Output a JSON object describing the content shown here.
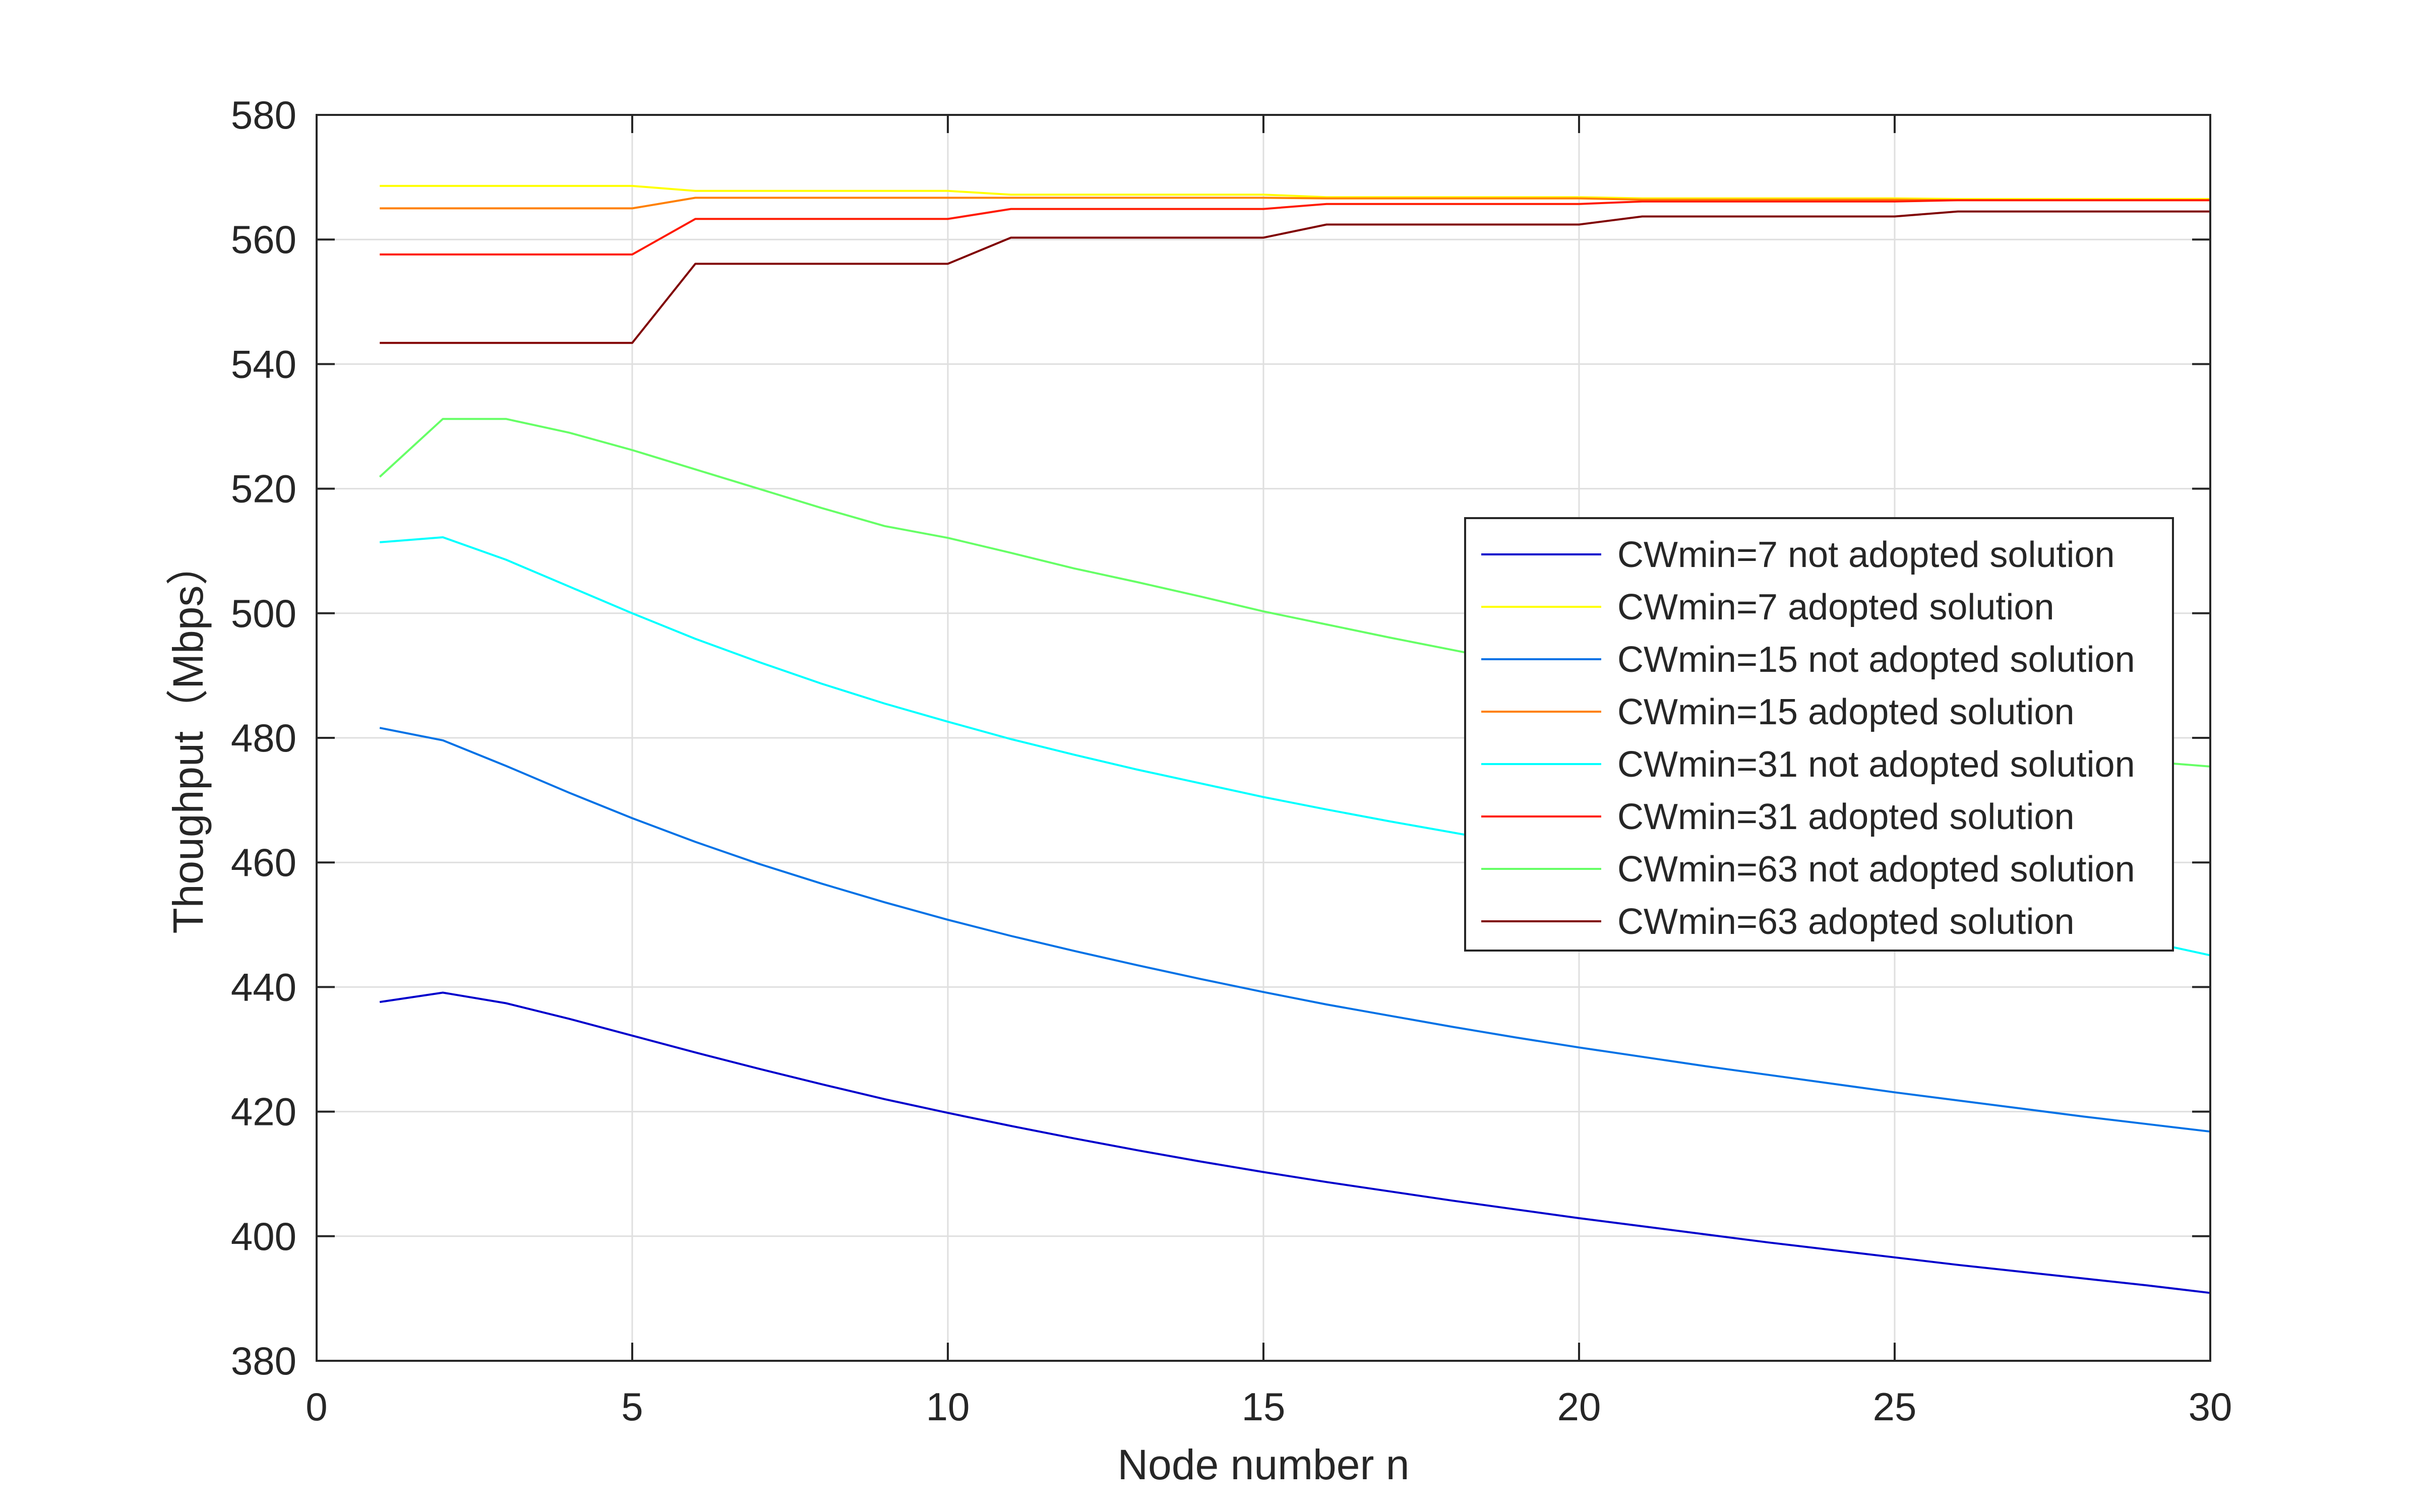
{
  "chart_data": {
    "type": "line",
    "title": "",
    "xlabel": "Node number n",
    "ylabel": "Thoughput（Mbps）",
    "xlim": [
      0,
      30
    ],
    "ylim": [
      380,
      580
    ],
    "xticks": [
      0,
      5,
      10,
      15,
      20,
      25,
      30
    ],
    "yticks": [
      380,
      400,
      420,
      440,
      460,
      480,
      500,
      520,
      540,
      560,
      580
    ],
    "grid": true,
    "legend_position": "right",
    "x": [
      1,
      2,
      3,
      4,
      5,
      6,
      7,
      8,
      9,
      10,
      11,
      12,
      13,
      14,
      15,
      16,
      17,
      18,
      19,
      20,
      21,
      22,
      23,
      24,
      25,
      26,
      27,
      28,
      29,
      30
    ],
    "series": [
      {
        "name": "CWmin=7 not adopted solution",
        "color": "#0000CC",
        "values": [
          437.6,
          439.1,
          437.4,
          434.9,
          432.2,
          429.5,
          426.9,
          424.4,
          422.0,
          419.8,
          417.7,
          415.7,
          413.8,
          412.0,
          410.3,
          408.7,
          407.2,
          405.7,
          404.3,
          402.9,
          401.6,
          400.3,
          399.0,
          397.8,
          396.6,
          395.4,
          394.3,
          393.2,
          392.1,
          390.9
        ]
      },
      {
        "name": "CWmin=7 adopted solution",
        "color": "#FFFF00",
        "values": [
          568.6,
          568.6,
          568.6,
          568.6,
          568.6,
          567.8,
          567.8,
          567.8,
          567.8,
          567.8,
          567.2,
          567.2,
          567.2,
          567.2,
          567.2,
          566.8,
          566.8,
          566.8,
          566.8,
          566.8,
          566.6,
          566.6,
          566.6,
          566.6,
          566.6,
          566.5,
          566.5,
          566.5,
          566.5,
          566.5
        ]
      },
      {
        "name": "CWmin=15 not adopted solution",
        "color": "#0072E6",
        "values": [
          481.6,
          479.6,
          475.5,
          471.2,
          467.1,
          463.3,
          459.8,
          456.6,
          453.6,
          450.8,
          448.2,
          445.8,
          443.5,
          441.3,
          439.2,
          437.2,
          435.4,
          433.6,
          431.9,
          430.3,
          428.8,
          427.3,
          425.9,
          424.5,
          423.1,
          421.8,
          420.5,
          419.2,
          418.0,
          416.8
        ]
      },
      {
        "name": "CWmin=15 adopted solution",
        "color": "#FF8000",
        "values": [
          565.0,
          565.0,
          565.0,
          565.0,
          565.0,
          566.7,
          566.7,
          566.7,
          566.7,
          566.7,
          566.7,
          566.7,
          566.7,
          566.7,
          566.7,
          566.6,
          566.6,
          566.6,
          566.6,
          566.6,
          566.4,
          566.4,
          566.4,
          566.4,
          566.4,
          566.3,
          566.3,
          566.3,
          566.3,
          566.3
        ]
      },
      {
        "name": "CWmin=31 not adopted solution",
        "color": "#00FFFF",
        "values": [
          511.4,
          512.2,
          508.6,
          504.3,
          500.0,
          495.9,
          492.2,
          488.7,
          485.5,
          482.6,
          479.8,
          477.3,
          474.9,
          472.7,
          470.5,
          468.5,
          466.6,
          464.8,
          463.0,
          461.4,
          459.8,
          458.2,
          456.7,
          455.2,
          453.8,
          452.4,
          450.8,
          449.2,
          447.3,
          445.1
        ]
      },
      {
        "name": "CWmin=31 adopted solution",
        "color": "#FF1A00",
        "values": [
          557.6,
          557.6,
          557.6,
          557.6,
          557.6,
          563.3,
          563.3,
          563.3,
          563.3,
          563.3,
          564.9,
          564.9,
          564.9,
          564.9,
          564.9,
          565.7,
          565.7,
          565.7,
          565.7,
          565.7,
          566.1,
          566.1,
          566.1,
          566.1,
          566.1,
          566.3,
          566.3,
          566.3,
          566.3,
          566.3
        ]
      },
      {
        "name": "CWmin=63 not adopted solution",
        "color": "#66FF66",
        "values": [
          521.9,
          531.2,
          531.2,
          529.0,
          526.2,
          523.1,
          520.0,
          516.9,
          514.0,
          512.1,
          509.7,
          507.2,
          505.0,
          502.7,
          500.3,
          498.2,
          496.1,
          494.1,
          492.1,
          490.3,
          488.4,
          486.5,
          484.7,
          483.0,
          481.3,
          479.7,
          478.3,
          477.1,
          476.2,
          475.4
        ]
      },
      {
        "name": "CWmin=63 adopted solution",
        "color": "#800000",
        "values": [
          543.4,
          543.4,
          543.4,
          543.4,
          543.4,
          556.1,
          556.1,
          556.1,
          556.1,
          556.1,
          560.3,
          560.3,
          560.3,
          560.3,
          560.3,
          562.4,
          562.4,
          562.4,
          562.4,
          562.4,
          563.7,
          563.7,
          563.7,
          563.7,
          563.7,
          564.5,
          564.5,
          564.5,
          564.5,
          564.5
        ]
      }
    ]
  }
}
